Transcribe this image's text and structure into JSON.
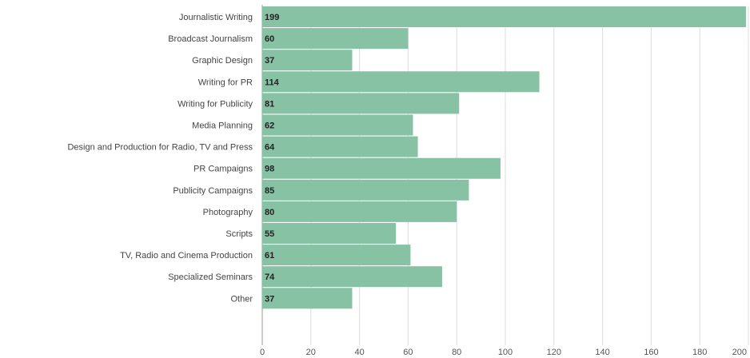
{
  "chart_data": {
    "type": "bar",
    "orientation": "horizontal",
    "title": "",
    "xlabel": "",
    "ylabel": "",
    "categories": [
      "Journalistic Writing",
      "Broadcast Journalism",
      "Graphic Design",
      "Writing for PR",
      "Writing for Publicity",
      "Media Planning",
      "Design and Production for Radio, TV and Press",
      "PR Campaigns",
      "Publicity Campaigns",
      "Photography",
      "Scripts",
      "TV, Radio and Cinema Production",
      "Specialized Seminars",
      "Other"
    ],
    "values": [
      199,
      60,
      37,
      114,
      81,
      62,
      64,
      98,
      85,
      80,
      55,
      61,
      74,
      37
    ],
    "xlim": [
      0,
      200
    ],
    "xticks": [
      0,
      20,
      40,
      60,
      80,
      100,
      120,
      140,
      160,
      180,
      200
    ],
    "grid": "vertical",
    "legend": "none",
    "bar_color": "#87c2a5"
  }
}
